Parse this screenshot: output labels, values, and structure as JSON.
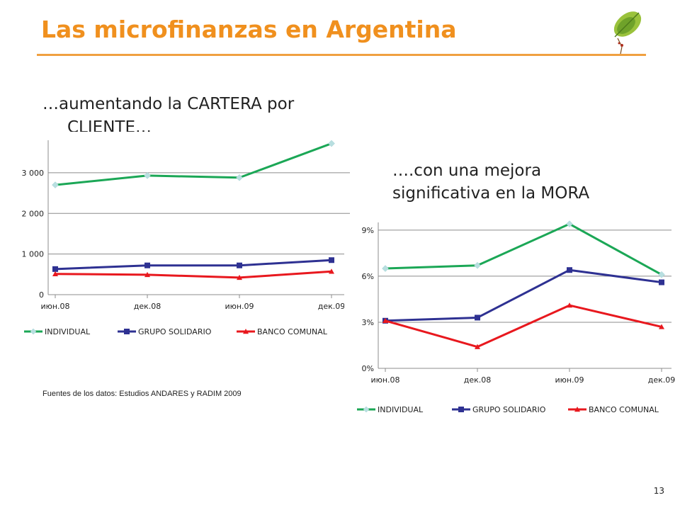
{
  "title": "Las microfinanzas en Argentina",
  "subtitle_left": [
    "…aumentando la CARTERA por",
    "CLIENTE…"
  ],
  "subtitle_right": [
    "….con una mejora",
    "significativa en la MORA"
  ],
  "source": "Fuentes de los datos: Estudios ANDARES  y RADIM 2009",
  "page_number": "13",
  "colors": {
    "title": "#f0901e",
    "individual": "#1ba756",
    "grupo_solidario": "#2e3192",
    "banco_comunal": "#e8181e",
    "individual_marker": "#b8dfe0"
  },
  "chart_data": [
    {
      "type": "line",
      "categories": [
        "июн.08",
        "дек.08",
        "июн.09",
        "дек.09"
      ],
      "series": [
        {
          "name": "INDIVIDUAL",
          "values": [
            2700,
            2930,
            2880,
            3720
          ],
          "marker": "diamond"
        },
        {
          "name": "GRUPO SOLIDARIO",
          "values": [
            630,
            720,
            720,
            850
          ],
          "marker": "square"
        },
        {
          "name": "BANCO COMUNAL",
          "values": [
            510,
            490,
            420,
            570
          ],
          "marker": "triangle"
        }
      ],
      "ylim": [
        0,
        3800
      ],
      "yticks": [
        0,
        1000,
        2000,
        3000
      ],
      "ytick_labels": [
        "0",
        "1 000",
        "2 000",
        "3 000"
      ],
      "grid": true,
      "legend": "bottom"
    },
    {
      "type": "line",
      "categories": [
        "июн.08",
        "дек.08",
        "июн.09",
        "дек.09"
      ],
      "series": [
        {
          "name": "INDIVIDUAL",
          "values": [
            6.5,
            6.7,
            9.4,
            6.1
          ],
          "marker": "diamond"
        },
        {
          "name": "GRUPO SOLIDARIO",
          "values": [
            3.1,
            3.3,
            6.4,
            5.6
          ],
          "marker": "square"
        },
        {
          "name": "BANCO COMUNAL",
          "values": [
            3.1,
            1.4,
            4.1,
            2.7
          ],
          "marker": "triangle"
        }
      ],
      "ylim": [
        0,
        9.5
      ],
      "yticks": [
        0,
        3,
        6,
        9
      ],
      "ytick_labels": [
        "0%",
        "3%",
        "6%",
        "9%"
      ],
      "grid": true,
      "legend": "bottom"
    }
  ]
}
